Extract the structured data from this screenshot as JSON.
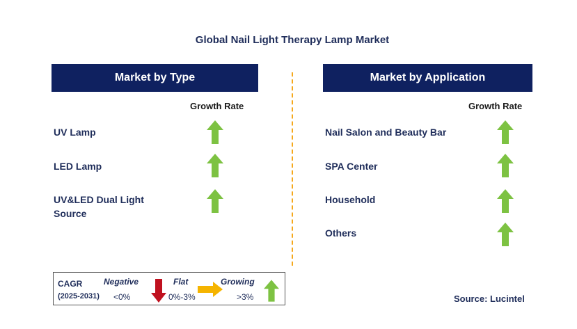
{
  "title": "Global Nail Light Therapy Lamp Market",
  "left_panel": {
    "header": "Market by Type",
    "growth_rate_label": "Growth Rate",
    "items": [
      {
        "line1": "UV Lamp",
        "line2": "",
        "trend": "growing"
      },
      {
        "line1": "LED Lamp",
        "line2": "",
        "trend": "growing"
      },
      {
        "line1": "UV&LED Dual Light",
        "line2": "Source",
        "trend": "growing"
      }
    ]
  },
  "right_panel": {
    "header": "Market by Application",
    "growth_rate_label": "Growth Rate",
    "items": [
      {
        "label": "Nail Salon and Beauty Bar",
        "trend": "growing"
      },
      {
        "label": "SPA Center",
        "trend": "growing"
      },
      {
        "label": "Household",
        "trend": "growing"
      },
      {
        "label": "Others",
        "trend": "growing"
      }
    ]
  },
  "legend": {
    "cagr_label": "CAGR",
    "period": "(2025-2031)",
    "negative_label": "Negative",
    "negative_value": "<0%",
    "flat_label": "Flat",
    "flat_value": "0%-3%",
    "growing_label": "Growing",
    "growing_value": ">3%"
  },
  "source": "Source: Lucintel",
  "colors": {
    "navy": "#0f2160",
    "growing_green": "#7dc242",
    "negative_red": "#c0111f",
    "flat_yellow": "#f5b400",
    "divider_orange": "#f5a81c"
  }
}
